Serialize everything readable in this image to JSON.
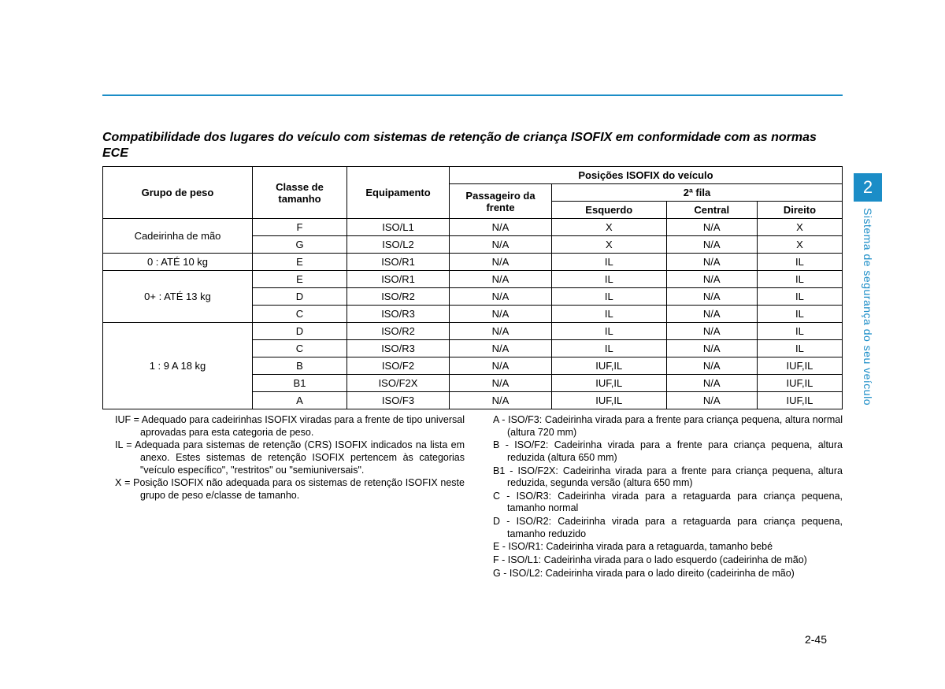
{
  "colors": {
    "accent": "#1b8dc7",
    "text": "#000000",
    "background": "#ffffff",
    "border": "#000000"
  },
  "sideTab": {
    "number": "2",
    "text": "Sistema de segurança do seu veículo"
  },
  "title": "Compatibilidade dos lugares do veículo com sistemas de retenção de criança ISOFIX em conformidade com as normas ECE",
  "table": {
    "headers": {
      "grupo": "Grupo de peso",
      "classe": "Classe de tamanho",
      "equip": "Equipamento",
      "posicoes": "Posições ISOFIX do veículo",
      "passageiro": "Passageiro da frente",
      "fila2": "2ª fila",
      "esq": "Esquerdo",
      "central": "Central",
      "dir": "Direito"
    },
    "groups": [
      {
        "label": "Cadeirinha de mão",
        "rows": [
          {
            "classe": "F",
            "equip": "ISO/L1",
            "pf": "N/A",
            "esq": "X",
            "cen": "N/A",
            "dir": "X"
          },
          {
            "classe": "G",
            "equip": "ISO/L2",
            "pf": "N/A",
            "esq": "X",
            "cen": "N/A",
            "dir": "X"
          }
        ]
      },
      {
        "label": "0 : ATÉ 10 kg",
        "rows": [
          {
            "classe": "E",
            "equip": "ISO/R1",
            "pf": "N/A",
            "esq": "IL",
            "cen": "N/A",
            "dir": "IL"
          }
        ]
      },
      {
        "label": "0+ : ATÉ 13 kg",
        "rows": [
          {
            "classe": "E",
            "equip": "ISO/R1",
            "pf": "N/A",
            "esq": "IL",
            "cen": "N/A",
            "dir": "IL"
          },
          {
            "classe": "D",
            "equip": "ISO/R2",
            "pf": "N/A",
            "esq": "IL",
            "cen": "N/A",
            "dir": "IL"
          },
          {
            "classe": "C",
            "equip": "ISO/R3",
            "pf": "N/A",
            "esq": "IL",
            "cen": "N/A",
            "dir": "IL"
          }
        ]
      },
      {
        "label": "1 : 9 A 18 kg",
        "rows": [
          {
            "classe": "D",
            "equip": "ISO/R2",
            "pf": "N/A",
            "esq": "IL",
            "cen": "N/A",
            "dir": "IL"
          },
          {
            "classe": "C",
            "equip": "ISO/R3",
            "pf": "N/A",
            "esq": "IL",
            "cen": "N/A",
            "dir": "IL"
          },
          {
            "classe": "B",
            "equip": "ISO/F2",
            "pf": "N/A",
            "esq": "IUF,IL",
            "cen": "N/A",
            "dir": "IUF,IL"
          },
          {
            "classe": "B1",
            "equip": "ISO/F2X",
            "pf": "N/A",
            "esq": "IUF,IL",
            "cen": "N/A",
            "dir": "IUF,IL"
          },
          {
            "classe": "A",
            "equip": "ISO/F3",
            "pf": "N/A",
            "esq": "IUF,IL",
            "cen": "N/A",
            "dir": "IUF,IL"
          }
        ]
      }
    ]
  },
  "legendsLeft": [
    "IUF = Adequado para cadeirinhas ISOFIX viradas para a frente de tipo universal aprovadas para esta categoria de peso.",
    "IL = Adequada para sistemas de retenção (CRS) ISOFIX indicados na lista em anexo. Estes sistemas de retenção ISOFIX pertencem às categorias \"veículo específico\", \"restritos\" ou \"semiuniversais\".",
    "X = Posição ISOFIX não adequada para os sistemas de retenção ISOFIX neste grupo de peso e/classe de tamanho."
  ],
  "legendsRight": [
    "A - ISO/F3: Cadeirinha virada para a frente para criança pequena, altura normal (altura 720 mm)",
    "B - ISO/F2: Cadeirinha virada para a frente para criança pequena, altura reduzida (altura 650 mm)",
    "B1 - ISO/F2X: Cadeirinha virada para a frente para criança pequena, altura reduzida, segunda versão (altura 650 mm)",
    "C - ISO/R3: Cadeirinha virada para a retaguarda para criança pequena, tamanho normal",
    "D - ISO/R2: Cadeirinha virada para a retaguarda para criança pequena, tamanho reduzido",
    "E - ISO/R1: Cadeirinha virada para a retaguarda, tamanho bebé",
    "F - ISO/L1: Cadeirinha virada para o lado esquerdo (cadeirinha de mão)",
    "G - ISO/L2: Cadeirinha virada para o lado direito (cadeirinha de mão)"
  ],
  "pageNumber": "2-45"
}
